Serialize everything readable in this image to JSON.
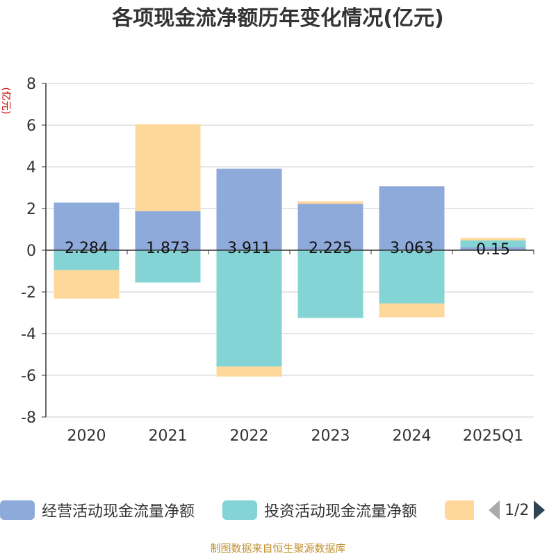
{
  "chart_data": {
    "type": "bar",
    "stacked": true,
    "title": "各项现金流净额历年变化情况(亿元)",
    "ylabel": "(亿元)",
    "ylim": [
      -8,
      8
    ],
    "yticks": [
      8,
      6,
      4,
      2,
      0,
      -2,
      -4,
      -6,
      -8
    ],
    "categories": [
      "2020",
      "2021",
      "2022",
      "2023",
      "2024",
      "2025Q1"
    ],
    "series": [
      {
        "name": "经营活动现金流量净额",
        "color": "#8eaadb",
        "values": [
          2.284,
          1.873,
          3.911,
          2.225,
          3.063,
          0.15
        ],
        "labels": [
          "2.284",
          "1.873",
          "3.911",
          "2.225",
          "3.063",
          "0.15"
        ]
      },
      {
        "name": "投资活动现金流量净额",
        "color": "#84d4d6",
        "values": [
          -0.95,
          -1.55,
          -5.58,
          -3.25,
          -2.55,
          0.32
        ]
      },
      {
        "name": "",
        "color": "#fdd89a",
        "values": [
          -1.37,
          4.17,
          -0.48,
          0.12,
          -0.67,
          0.12
        ]
      }
    ],
    "grid": true,
    "legend_position": "bottom"
  },
  "legend": {
    "items": [
      {
        "label": "经营活动现金流量净额",
        "color": "#8eaadb"
      },
      {
        "label": "投资活动现金流量净额",
        "color": "#84d4d6"
      },
      {
        "label": "",
        "color": "#fdd89a"
      }
    ],
    "page_text": "1/2"
  },
  "footer": "制图数据来自恒生聚源数据库"
}
